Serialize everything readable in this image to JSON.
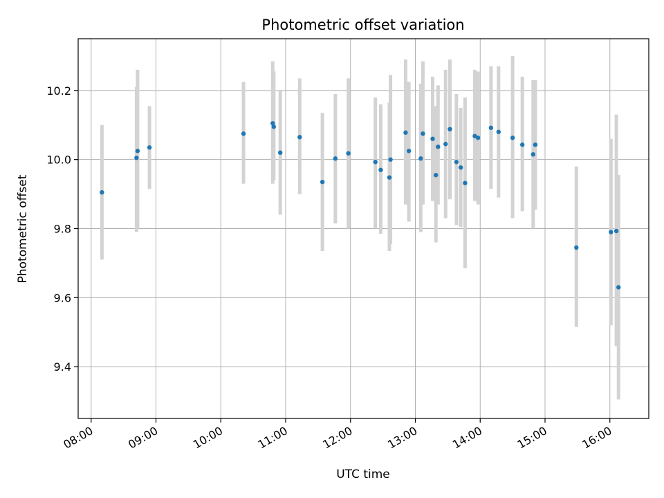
{
  "chart_data": {
    "type": "scatter",
    "title": "Photometric offset variation",
    "xlabel": "UTC time",
    "ylabel": "Photometric offset",
    "xlim": [
      "07:48",
      "16:36"
    ],
    "ylim": [
      9.25,
      10.35
    ],
    "x_ticks": [
      "08:00",
      "09:00",
      "10:00",
      "11:00",
      "12:00",
      "13:00",
      "14:00",
      "15:00",
      "16:00"
    ],
    "y_ticks": [
      9.4,
      9.6,
      9.8,
      10.0,
      10.2
    ],
    "grid": true,
    "point_color": "#1f77b4",
    "errorbar_color": "#d3d3d3",
    "points": [
      {
        "x": "08:10",
        "y": 9.905,
        "lo": 9.71,
        "hi": 10.1
      },
      {
        "x": "08:42",
        "y": 10.005,
        "lo": 9.79,
        "hi": 10.21
      },
      {
        "x": "08:43",
        "y": 10.025,
        "lo": 9.8,
        "hi": 10.26
      },
      {
        "x": "08:54",
        "y": 10.035,
        "lo": 9.915,
        "hi": 10.155
      },
      {
        "x": "10:21",
        "y": 10.075,
        "lo": 9.93,
        "hi": 10.225
      },
      {
        "x": "10:48",
        "y": 10.105,
        "lo": 9.93,
        "hi": 10.285
      },
      {
        "x": "10:49",
        "y": 10.095,
        "lo": 9.94,
        "hi": 10.255
      },
      {
        "x": "10:55",
        "y": 10.02,
        "lo": 9.84,
        "hi": 10.2
      },
      {
        "x": "11:13",
        "y": 10.065,
        "lo": 9.9,
        "hi": 10.235
      },
      {
        "x": "11:34",
        "y": 9.935,
        "lo": 9.735,
        "hi": 10.135
      },
      {
        "x": "11:46",
        "y": 10.003,
        "lo": 9.815,
        "hi": 10.19
      },
      {
        "x": "11:58",
        "y": 10.018,
        "lo": 9.8,
        "hi": 10.235
      },
      {
        "x": "12:23",
        "y": 9.993,
        "lo": 9.8,
        "hi": 10.18
      },
      {
        "x": "12:28",
        "y": 9.97,
        "lo": 9.785,
        "hi": 10.16
      },
      {
        "x": "12:36",
        "y": 9.948,
        "lo": 9.735,
        "hi": 10.165
      },
      {
        "x": "12:37",
        "y": 10.0,
        "lo": 9.755,
        "hi": 10.245
      },
      {
        "x": "12:51",
        "y": 10.078,
        "lo": 9.87,
        "hi": 10.29
      },
      {
        "x": "12:54",
        "y": 10.025,
        "lo": 9.82,
        "hi": 10.225
      },
      {
        "x": "13:05",
        "y": 10.003,
        "lo": 9.79,
        "hi": 10.22
      },
      {
        "x": "13:07",
        "y": 10.075,
        "lo": 9.87,
        "hi": 10.285
      },
      {
        "x": "13:16",
        "y": 10.06,
        "lo": 9.88,
        "hi": 10.24
      },
      {
        "x": "13:19",
        "y": 9.955,
        "lo": 9.76,
        "hi": 10.155
      },
      {
        "x": "13:21",
        "y": 10.037,
        "lo": 9.87,
        "hi": 10.215
      },
      {
        "x": "13:28",
        "y": 10.045,
        "lo": 9.83,
        "hi": 10.26
      },
      {
        "x": "13:32",
        "y": 10.088,
        "lo": 9.885,
        "hi": 10.29
      },
      {
        "x": "13:38",
        "y": 9.993,
        "lo": 9.81,
        "hi": 10.19
      },
      {
        "x": "13:42",
        "y": 9.977,
        "lo": 9.805,
        "hi": 10.15
      },
      {
        "x": "13:46",
        "y": 9.932,
        "lo": 9.685,
        "hi": 10.18
      },
      {
        "x": "13:55",
        "y": 10.068,
        "lo": 9.88,
        "hi": 10.26
      },
      {
        "x": "13:58",
        "y": 10.063,
        "lo": 9.87,
        "hi": 10.255
      },
      {
        "x": "14:10",
        "y": 10.092,
        "lo": 9.915,
        "hi": 10.27
      },
      {
        "x": "14:17",
        "y": 10.08,
        "lo": 9.89,
        "hi": 10.27
      },
      {
        "x": "14:30",
        "y": 10.063,
        "lo": 9.83,
        "hi": 10.3
      },
      {
        "x": "14:39",
        "y": 10.043,
        "lo": 9.85,
        "hi": 10.24
      },
      {
        "x": "14:49",
        "y": 10.015,
        "lo": 9.8,
        "hi": 10.23
      },
      {
        "x": "14:51",
        "y": 10.043,
        "lo": 9.855,
        "hi": 10.23
      },
      {
        "x": "15:29",
        "y": 9.745,
        "lo": 9.515,
        "hi": 9.98
      },
      {
        "x": "16:01",
        "y": 9.79,
        "lo": 9.52,
        "hi": 10.06
      },
      {
        "x": "16:06",
        "y": 9.793,
        "lo": 9.46,
        "hi": 10.13
      },
      {
        "x": "16:08",
        "y": 9.63,
        "lo": 9.305,
        "hi": 9.955
      }
    ]
  }
}
